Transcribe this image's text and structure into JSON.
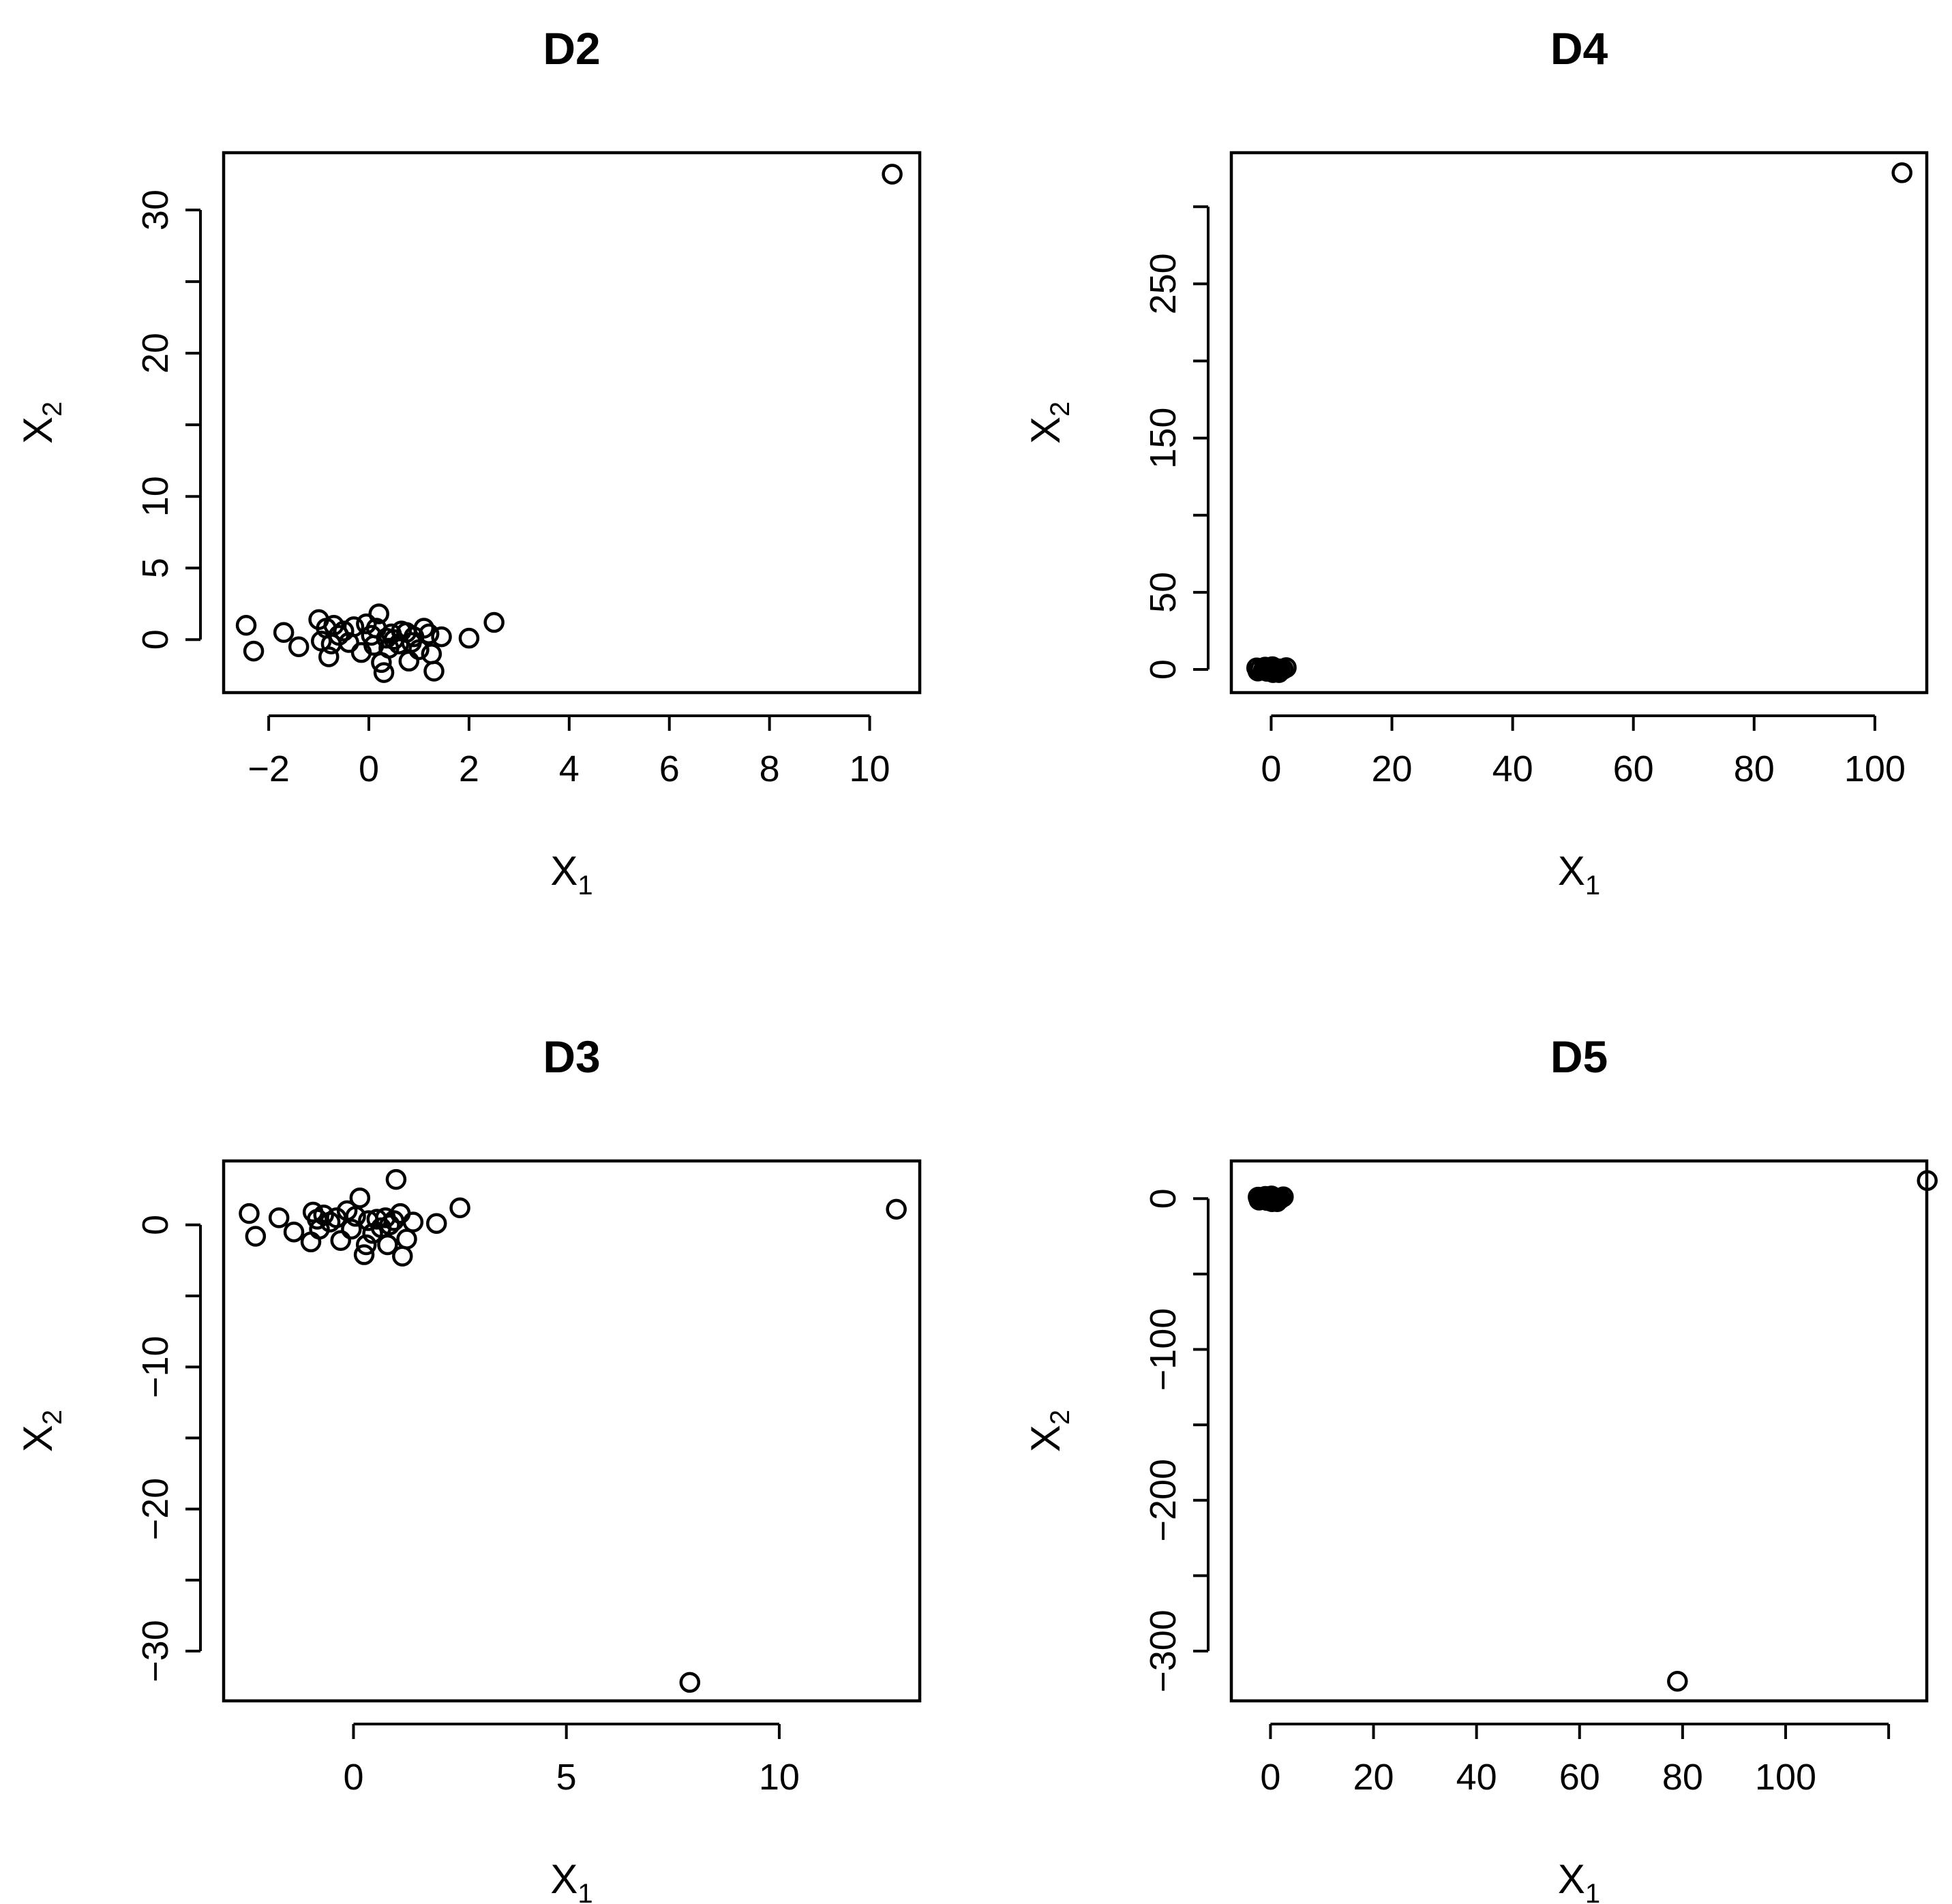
{
  "chart_data": [
    {
      "type": "scatter",
      "title": "D2",
      "xlabel": "X",
      "xlabel_sub": "1",
      "ylabel": "X",
      "ylabel_sub": "2",
      "xlim": [
        -2.9,
        11.0
      ],
      "ylim": [
        -3.7,
        34.0
      ],
      "xticks": [
        -2,
        0,
        2,
        4,
        6,
        8,
        10
      ],
      "xtick_labels": [
        "−2",
        "0",
        "2",
        "4",
        "6",
        "8",
        "10"
      ],
      "yticks": [
        0,
        5,
        10,
        15,
        20,
        25,
        30
      ],
      "ytick_labels": [
        "0",
        "5",
        "10",
        "",
        "20",
        "",
        "30"
      ],
      "points": [
        [
          -2.45,
          1.0
        ],
        [
          -2.3,
          -0.8
        ],
        [
          -1.7,
          0.5
        ],
        [
          -1.4,
          -0.5
        ],
        [
          -1.0,
          1.4
        ],
        [
          -0.95,
          -0.1
        ],
        [
          -0.85,
          0.8
        ],
        [
          -0.8,
          -1.2
        ],
        [
          -0.75,
          -0.3
        ],
        [
          -0.7,
          1.0
        ],
        [
          -0.6,
          0.3
        ],
        [
          -0.5,
          0.6
        ],
        [
          -0.4,
          -0.2
        ],
        [
          -0.3,
          0.9
        ],
        [
          -0.15,
          -0.9
        ],
        [
          -0.05,
          1.1
        ],
        [
          0.05,
          0.3
        ],
        [
          0.1,
          -0.4
        ],
        [
          0.15,
          0.8
        ],
        [
          0.2,
          1.8
        ],
        [
          0.25,
          -1.6
        ],
        [
          0.3,
          -2.3
        ],
        [
          0.35,
          0.1
        ],
        [
          0.4,
          -0.6
        ],
        [
          0.45,
          0.4
        ],
        [
          0.5,
          0.0
        ],
        [
          0.6,
          -0.3
        ],
        [
          0.65,
          0.6
        ],
        [
          0.75,
          0.5
        ],
        [
          0.8,
          -1.5
        ],
        [
          0.85,
          -0.2
        ],
        [
          0.9,
          0.2
        ],
        [
          1.0,
          -0.7
        ],
        [
          1.1,
          0.8
        ],
        [
          1.2,
          0.4
        ],
        [
          1.25,
          -1.0
        ],
        [
          1.3,
          -2.2
        ],
        [
          1.45,
          0.2
        ],
        [
          2.0,
          0.1
        ],
        [
          2.5,
          1.2
        ],
        [
          10.45,
          32.5
        ]
      ]
    },
    {
      "type": "scatter",
      "title": "D4",
      "xlabel": "X",
      "xlabel_sub": "1",
      "ylabel": "X",
      "ylabel_sub": "2",
      "xlim": [
        -6.6,
        108.6
      ],
      "ylim": [
        -15.0,
        335.0
      ],
      "xticks": [
        0,
        20,
        40,
        60,
        80,
        100
      ],
      "xtick_labels": [
        "0",
        "20",
        "40",
        "60",
        "80",
        "100"
      ],
      "yticks": [
        0,
        50,
        100,
        150,
        200,
        250,
        300
      ],
      "ytick_labels": [
        "0",
        "50",
        "",
        "150",
        "",
        "250",
        ""
      ],
      "points": [
        [
          -2.4,
          1.0
        ],
        [
          -2.2,
          -1.0
        ],
        [
          -1.8,
          0.5
        ],
        [
          -1.3,
          -0.5
        ],
        [
          -1.0,
          1.5
        ],
        [
          -0.9,
          -0.2
        ],
        [
          -0.8,
          0.8
        ],
        [
          -0.7,
          -1.2
        ],
        [
          -0.5,
          0.3
        ],
        [
          -0.3,
          0.8
        ],
        [
          -0.1,
          -0.9
        ],
        [
          0.1,
          1.0
        ],
        [
          0.2,
          1.8
        ],
        [
          0.3,
          -2.0
        ],
        [
          0.4,
          -0.5
        ],
        [
          0.5,
          0.4
        ],
        [
          0.7,
          0.6
        ],
        [
          0.8,
          -1.5
        ],
        [
          1.0,
          -0.6
        ],
        [
          1.2,
          0.4
        ],
        [
          1.3,
          -2.0
        ],
        [
          1.5,
          0.2
        ],
        [
          2.0,
          0.1
        ],
        [
          2.5,
          1.2
        ],
        [
          104.5,
          322.0
        ]
      ]
    },
    {
      "type": "scatter",
      "title": "D3",
      "xlabel": "X",
      "xlabel_sub": "1",
      "ylabel": "X",
      "ylabel_sub": "2",
      "xlim": [
        -3.05,
        13.3
      ],
      "ylim": [
        -33.5,
        4.5
      ],
      "xticks": [
        0,
        5,
        10
      ],
      "xtick_labels": [
        "0",
        "5",
        "10"
      ],
      "yticks": [
        -30,
        -25,
        -20,
        -15,
        -10,
        -5,
        0
      ],
      "ytick_labels": [
        "−30",
        "",
        "−20",
        "",
        "−10",
        "",
        "0"
      ],
      "points": [
        [
          -2.45,
          0.8
        ],
        [
          -2.3,
          -0.8
        ],
        [
          -1.75,
          0.5
        ],
        [
          -1.4,
          -0.5
        ],
        [
          -1.0,
          -1.2
        ],
        [
          -0.95,
          0.9
        ],
        [
          -0.85,
          0.4
        ],
        [
          -0.8,
          -0.3
        ],
        [
          -0.7,
          0.7
        ],
        [
          -0.55,
          0.2
        ],
        [
          -0.4,
          0.5
        ],
        [
          -0.3,
          -1.1
        ],
        [
          -0.15,
          1.0
        ],
        [
          -0.05,
          -0.3
        ],
        [
          0.05,
          0.6
        ],
        [
          0.15,
          1.9
        ],
        [
          0.25,
          -2.1
        ],
        [
          0.3,
          -1.4
        ],
        [
          0.35,
          0.3
        ],
        [
          0.45,
          -0.6
        ],
        [
          0.55,
          0.4
        ],
        [
          0.65,
          -0.2
        ],
        [
          0.75,
          0.5
        ],
        [
          0.8,
          -1.4
        ],
        [
          0.85,
          0.0
        ],
        [
          0.95,
          0.3
        ],
        [
          1.0,
          3.2
        ],
        [
          1.1,
          0.8
        ],
        [
          1.15,
          -2.2
        ],
        [
          1.25,
          -1.0
        ],
        [
          1.4,
          0.2
        ],
        [
          1.95,
          0.1
        ],
        [
          2.5,
          1.2
        ],
        [
          7.9,
          -32.2
        ],
        [
          12.75,
          1.1
        ]
      ]
    },
    {
      "type": "scatter",
      "title": "D5",
      "xlabel": "X",
      "xlabel_sub": "1",
      "ylabel": "X",
      "ylabel_sub": "2",
      "xlim": [
        -7.6,
        127.4
      ],
      "ylim": [
        -333.0,
        25.0
      ],
      "xticks": [
        0,
        20,
        40,
        60,
        80,
        100,
        120
      ],
      "xtick_labels": [
        "0",
        "20",
        "40",
        "60",
        "80",
        "100",
        ""
      ],
      "yticks": [
        -300,
        -250,
        -200,
        -150,
        -100,
        -50,
        0
      ],
      "ytick_labels": [
        "−300",
        "",
        "−200",
        "",
        "−100",
        "",
        "0"
      ],
      "points": [
        [
          -2.4,
          1.0
        ],
        [
          -2.2,
          -1.0
        ],
        [
          -1.8,
          0.5
        ],
        [
          -1.3,
          -0.5
        ],
        [
          -1.0,
          1.5
        ],
        [
          -0.9,
          -0.2
        ],
        [
          -0.8,
          0.8
        ],
        [
          -0.7,
          -1.2
        ],
        [
          -0.5,
          0.3
        ],
        [
          -0.3,
          0.8
        ],
        [
          -0.1,
          -0.9
        ],
        [
          0.1,
          1.0
        ],
        [
          0.2,
          1.8
        ],
        [
          0.3,
          -2.0
        ],
        [
          0.4,
          -0.5
        ],
        [
          0.5,
          0.4
        ],
        [
          0.7,
          0.6
        ],
        [
          0.8,
          -1.5
        ],
        [
          1.0,
          -0.6
        ],
        [
          1.2,
          0.4
        ],
        [
          1.3,
          -2.0
        ],
        [
          1.5,
          0.2
        ],
        [
          2.0,
          0.1
        ],
        [
          2.5,
          1.2
        ],
        [
          79.0,
          -320.0
        ],
        [
          127.5,
          12.0
        ]
      ]
    }
  ]
}
